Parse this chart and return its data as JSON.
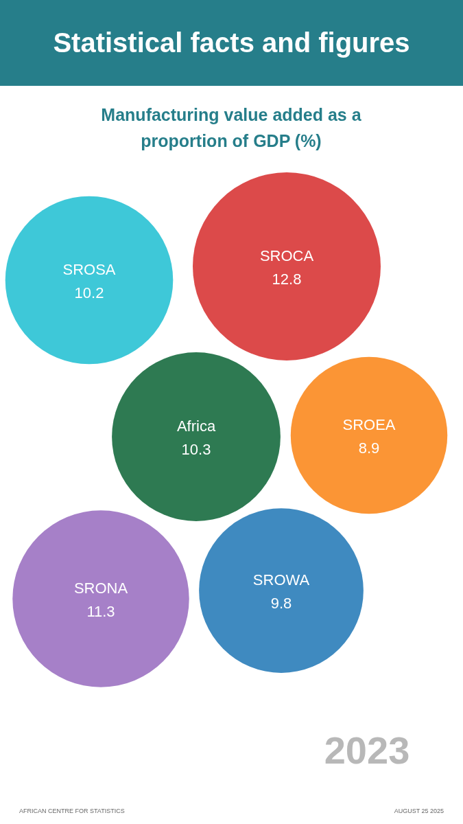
{
  "chart_data": {
    "type": "other",
    "title": "Statistical facts and figures",
    "subtitle": "Manufacturing value added as a proportion of GDP (%)",
    "categories": [
      "SROSA",
      "SROCA",
      "Africa",
      "SROEA",
      "SRONA",
      "SROWA"
    ],
    "values": [
      10.2,
      12.8,
      10.3,
      8.9,
      11.3,
      9.8
    ],
    "colors": [
      "#3ec8d8",
      "#dc4a4a",
      "#2e7a52",
      "#fb9535",
      "#a680c8",
      "#3f8ac0"
    ],
    "data_labels": true,
    "annotations": [
      "2023",
      "AFRICAN CENTRE FOR STATISTICS",
      "AUGUST 25 2025"
    ]
  }
}
